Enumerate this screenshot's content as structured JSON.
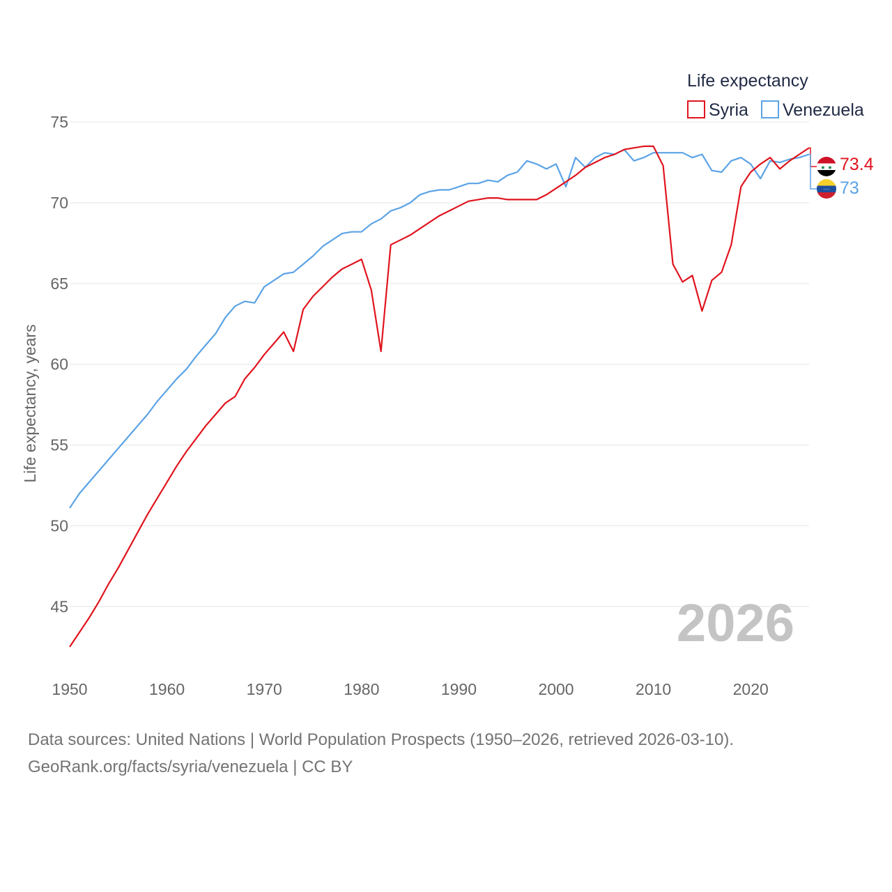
{
  "chart_data": {
    "type": "line",
    "legend_title": "Life expectancy",
    "ylabel": "Life expectancy, years",
    "xlim": [
      1950,
      2026
    ],
    "ylim": [
      41,
      76
    ],
    "y_ticks": [
      45,
      50,
      55,
      60,
      65,
      70,
      75
    ],
    "x_ticks": [
      1950,
      1960,
      1970,
      1980,
      1990,
      2000,
      2010,
      2020
    ],
    "watermark_year": "2026",
    "series": [
      {
        "name": "Syria",
        "color": "#e0141e",
        "end_label": "73.4",
        "flag": "syria",
        "points": [
          [
            1950,
            42.5
          ],
          [
            1951,
            43.4
          ],
          [
            1952,
            44.3
          ],
          [
            1953,
            45.3
          ],
          [
            1954,
            46.4
          ],
          [
            1955,
            47.4
          ],
          [
            1956,
            48.5
          ],
          [
            1957,
            49.6
          ],
          [
            1958,
            50.7
          ],
          [
            1959,
            51.7
          ],
          [
            1960,
            52.7
          ],
          [
            1961,
            53.7
          ],
          [
            1962,
            54.6
          ],
          [
            1963,
            55.4
          ],
          [
            1964,
            56.2
          ],
          [
            1965,
            56.9
          ],
          [
            1966,
            57.6
          ],
          [
            1967,
            58.0
          ],
          [
            1968,
            59.1
          ],
          [
            1969,
            59.8
          ],
          [
            1970,
            60.6
          ],
          [
            1971,
            61.3
          ],
          [
            1972,
            62.0
          ],
          [
            1973,
            60.8
          ],
          [
            1974,
            63.4
          ],
          [
            1975,
            64.2
          ],
          [
            1976,
            64.8
          ],
          [
            1977,
            65.4
          ],
          [
            1978,
            65.9
          ],
          [
            1979,
            66.2
          ],
          [
            1980,
            66.5
          ],
          [
            1981,
            64.6
          ],
          [
            1982,
            60.8
          ],
          [
            1983,
            67.4
          ],
          [
            1984,
            67.7
          ],
          [
            1985,
            68.0
          ],
          [
            1986,
            68.4
          ],
          [
            1987,
            68.8
          ],
          [
            1988,
            69.2
          ],
          [
            1989,
            69.5
          ],
          [
            1990,
            69.8
          ],
          [
            1991,
            70.1
          ],
          [
            1992,
            70.2
          ],
          [
            1993,
            70.3
          ],
          [
            1994,
            70.3
          ],
          [
            1995,
            70.2
          ],
          [
            1996,
            70.2
          ],
          [
            1997,
            70.2
          ],
          [
            1998,
            70.2
          ],
          [
            1999,
            70.5
          ],
          [
            2000,
            70.9
          ],
          [
            2001,
            71.3
          ],
          [
            2002,
            71.7
          ],
          [
            2003,
            72.2
          ],
          [
            2004,
            72.5
          ],
          [
            2005,
            72.8
          ],
          [
            2006,
            73.0
          ],
          [
            2007,
            73.3
          ],
          [
            2008,
            73.4
          ],
          [
            2009,
            73.5
          ],
          [
            2010,
            73.5
          ],
          [
            2011,
            72.3
          ],
          [
            2012,
            66.2
          ],
          [
            2013,
            65.1
          ],
          [
            2014,
            65.5
          ],
          [
            2015,
            63.3
          ],
          [
            2016,
            65.2
          ],
          [
            2017,
            65.7
          ],
          [
            2018,
            67.4
          ],
          [
            2019,
            71.0
          ],
          [
            2020,
            71.9
          ],
          [
            2021,
            72.4
          ],
          [
            2022,
            72.8
          ],
          [
            2023,
            72.1
          ],
          [
            2024,
            72.6
          ],
          [
            2025,
            73.0
          ],
          [
            2026,
            73.4
          ]
        ]
      },
      {
        "name": "Venezuela",
        "color": "#5ba3e6",
        "end_label": "73",
        "flag": "venezuela",
        "points": [
          [
            1950,
            51.1
          ],
          [
            1951,
            52.0
          ],
          [
            1952,
            52.7
          ],
          [
            1953,
            53.4
          ],
          [
            1954,
            54.1
          ],
          [
            1955,
            54.8
          ],
          [
            1956,
            55.5
          ],
          [
            1957,
            56.2
          ],
          [
            1958,
            56.9
          ],
          [
            1959,
            57.7
          ],
          [
            1960,
            58.4
          ],
          [
            1961,
            59.1
          ],
          [
            1962,
            59.7
          ],
          [
            1963,
            60.5
          ],
          [
            1964,
            61.2
          ],
          [
            1965,
            61.9
          ],
          [
            1966,
            62.9
          ],
          [
            1967,
            63.6
          ],
          [
            1968,
            63.9
          ],
          [
            1969,
            63.8
          ],
          [
            1970,
            64.8
          ],
          [
            1971,
            65.2
          ],
          [
            1972,
            65.6
          ],
          [
            1973,
            65.7
          ],
          [
            1974,
            66.2
          ],
          [
            1975,
            66.7
          ],
          [
            1976,
            67.3
          ],
          [
            1977,
            67.7
          ],
          [
            1978,
            68.1
          ],
          [
            1979,
            68.2
          ],
          [
            1980,
            68.2
          ],
          [
            1981,
            68.7
          ],
          [
            1982,
            69.0
          ],
          [
            1983,
            69.5
          ],
          [
            1984,
            69.7
          ],
          [
            1985,
            70.0
          ],
          [
            1986,
            70.5
          ],
          [
            1987,
            70.7
          ],
          [
            1988,
            70.8
          ],
          [
            1989,
            70.8
          ],
          [
            1990,
            71.0
          ],
          [
            1991,
            71.2
          ],
          [
            1992,
            71.2
          ],
          [
            1993,
            71.4
          ],
          [
            1994,
            71.3
          ],
          [
            1995,
            71.7
          ],
          [
            1996,
            71.9
          ],
          [
            1997,
            72.6
          ],
          [
            1998,
            72.4
          ],
          [
            1999,
            72.1
          ],
          [
            2000,
            72.4
          ],
          [
            2001,
            71.0
          ],
          [
            2002,
            72.8
          ],
          [
            2003,
            72.2
          ],
          [
            2004,
            72.8
          ],
          [
            2005,
            73.1
          ],
          [
            2006,
            73.0
          ],
          [
            2007,
            73.3
          ],
          [
            2008,
            72.6
          ],
          [
            2009,
            72.8
          ],
          [
            2010,
            73.1
          ],
          [
            2011,
            73.1
          ],
          [
            2012,
            73.1
          ],
          [
            2013,
            73.1
          ],
          [
            2014,
            72.8
          ],
          [
            2015,
            73.0
          ],
          [
            2016,
            72.0
          ],
          [
            2017,
            71.9
          ],
          [
            2018,
            72.6
          ],
          [
            2019,
            72.8
          ],
          [
            2020,
            72.4
          ],
          [
            2021,
            71.5
          ],
          [
            2022,
            72.6
          ],
          [
            2023,
            72.5
          ],
          [
            2024,
            72.7
          ],
          [
            2025,
            72.8
          ],
          [
            2026,
            73.0
          ]
        ]
      }
    ]
  },
  "footer": {
    "line1": "Data sources: United Nations | World Population Prospects (1950–2026, retrieved 2026-03-10).",
    "line2": "GeoRank.org/facts/syria/venezuela | CC BY"
  },
  "colors": {
    "grid": "#e6e6e6",
    "tick_text": "#666666",
    "watermark": "#c4c4c4"
  }
}
